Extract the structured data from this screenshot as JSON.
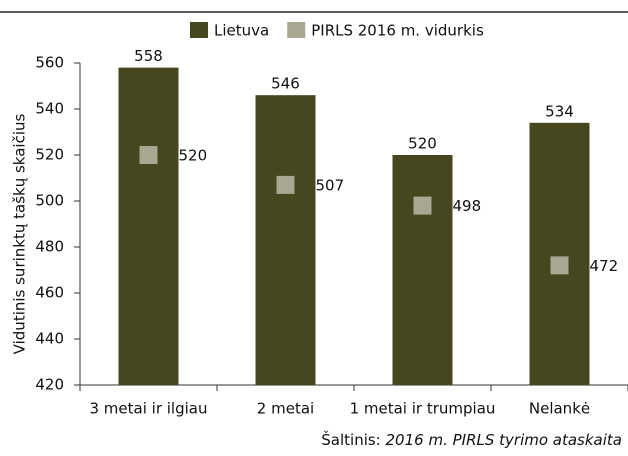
{
  "chart_data": {
    "type": "bar",
    "categories": [
      "3 metai ir ilgiau",
      "2 metai",
      "1 metai ir trumpiau",
      "Nelankė"
    ],
    "series": [
      {
        "name": "Lietuva",
        "color": "#46461f",
        "values": [
          558,
          546,
          520,
          534
        ],
        "kind": "bar"
      },
      {
        "name": "PIRLS 2016 m. vidurkis",
        "color": "#a8a892",
        "values": [
          520,
          507,
          498,
          472
        ],
        "kind": "marker"
      }
    ],
    "ylabel": "Vidutinis surinktų taškų skaičius",
    "ylim": [
      420,
      560
    ],
    "yticks": [
      420,
      440,
      460,
      480,
      500,
      520,
      540,
      560
    ],
    "grid": false,
    "legend": "top",
    "source_label": "Šaltinis: ",
    "source_text": "2016 m. PIRLS tyrimo ataskaita"
  }
}
